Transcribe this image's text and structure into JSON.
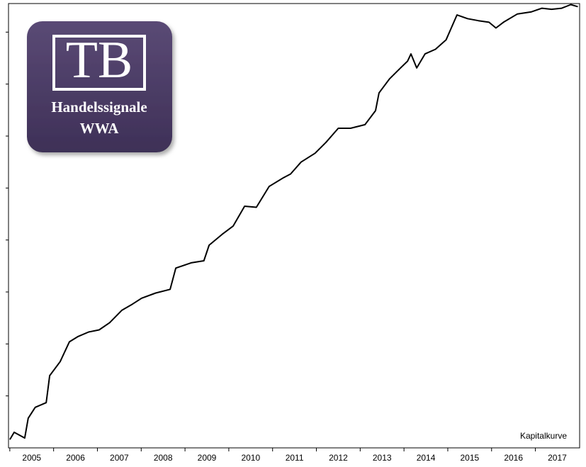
{
  "chart_data": {
    "type": "line",
    "annotation": "Kapitalkurve",
    "logo": {
      "title": "TB",
      "lines": [
        "Handelssignale",
        "WWA"
      ]
    },
    "xlim": [
      2004.97,
      2018.01
    ],
    "xticks": [
      2005,
      2006,
      2007,
      2008,
      2009,
      2010,
      2011,
      2012,
      2013,
      2014,
      2015,
      2016,
      2017
    ],
    "ylim": [
      0,
      85.5
    ],
    "yticks": [
      10,
      20,
      30,
      40,
      50,
      60,
      70,
      80
    ],
    "series": [
      {
        "name": "Kapitalkurve",
        "color": "#000000",
        "x": [
          2005.0,
          2005.1,
          2005.34,
          2005.42,
          2005.58,
          2005.83,
          2005.91,
          2006.15,
          2006.36,
          2006.55,
          2006.8,
          2007.04,
          2007.28,
          2007.56,
          2007.77,
          2008.01,
          2008.33,
          2008.66,
          2008.79,
          2009.14,
          2009.43,
          2009.55,
          2009.85,
          2010.1,
          2010.36,
          2010.63,
          2010.92,
          2011.25,
          2011.41,
          2011.65,
          2011.97,
          2012.22,
          2012.5,
          2012.78,
          2013.11,
          2013.35,
          2013.43,
          2013.67,
          2013.92,
          2014.08,
          2014.16,
          2014.29,
          2014.48,
          2014.72,
          2014.96,
          2015.21,
          2015.45,
          2015.7,
          2015.94,
          2016.1,
          2016.27,
          2016.59,
          2016.91,
          2017.15,
          2017.37,
          2017.6,
          2017.81,
          2017.97
        ],
        "values": [
          1.6,
          3.0,
          1.9,
          5.7,
          7.8,
          8.7,
          13.9,
          16.6,
          20.4,
          21.4,
          22.3,
          22.7,
          24.1,
          26.5,
          27.5,
          28.8,
          29.8,
          30.5,
          34.6,
          35.6,
          36.0,
          39.0,
          41.1,
          42.7,
          46.5,
          46.3,
          50.3,
          52.0,
          52.7,
          55.0,
          56.7,
          58.8,
          61.5,
          61.5,
          62.2,
          64.9,
          68.3,
          71.0,
          73.1,
          74.4,
          75.8,
          73.1,
          75.8,
          76.7,
          78.5,
          83.3,
          82.6,
          82.2,
          81.9,
          80.8,
          81.9,
          83.5,
          83.9,
          84.6,
          84.4,
          84.6,
          85.3,
          84.9
        ]
      }
    ]
  }
}
